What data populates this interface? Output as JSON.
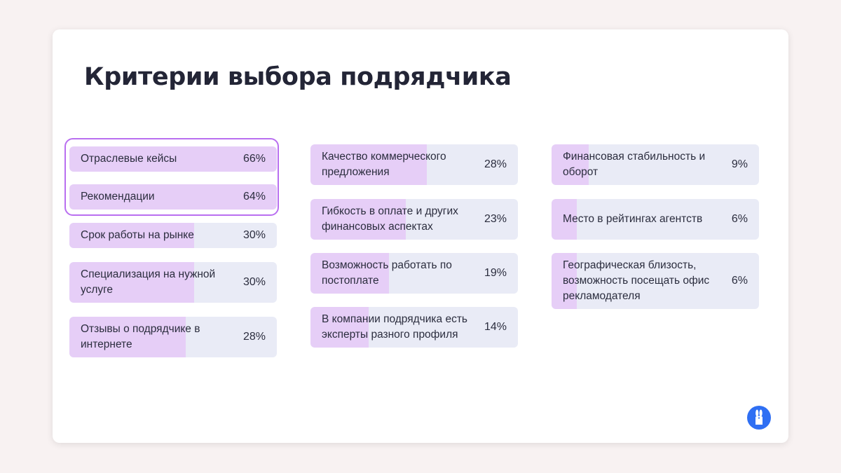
{
  "title": "Критерии выбора подрядчика",
  "colors": {
    "background": "#f8f2f2",
    "card": "#ffffff",
    "bar_track": "#e9ebf6",
    "bar_fill": "#e6cef7",
    "highlight_border": "#b96ff0",
    "logo": "#2f6ff3",
    "text": "#2b2d3e"
  },
  "logo_icon": "rabbit-logo-icon",
  "chart_data": {
    "type": "bar",
    "title": "Критерии выбора подрядчика",
    "orientation": "horizontal",
    "value_unit": "%",
    "xlim": [
      0,
      100
    ],
    "highlighted": [
      "Отраслевые кейсы",
      "Рекомендации"
    ],
    "columns": [
      [
        {
          "label": "Отраслевые кейсы",
          "value": 66,
          "display": "66%"
        },
        {
          "label": "Рекомендации",
          "value": 64,
          "display": "64%"
        },
        {
          "label": "Срок работы на рынке",
          "value": 30,
          "display": "30%"
        },
        {
          "label": "Специализация на нужной услуге",
          "value": 30,
          "display": "30%"
        },
        {
          "label": "Отзывы о подрядчике в интернете",
          "value": 28,
          "display": "28%"
        }
      ],
      [
        {
          "label": "Качество коммерческого предложения",
          "value": 28,
          "display": "28%"
        },
        {
          "label": "Гибкость в оплате и других финансовых аспектах",
          "value": 23,
          "display": "23%"
        },
        {
          "label": "Возможность работать по постоплате",
          "value": 19,
          "display": "19%"
        },
        {
          "label": "В компании подрядчика есть эксперты разного профиля",
          "value": 14,
          "display": "14%"
        }
      ],
      [
        {
          "label": "Финансовая стабильность и оборот",
          "value": 9,
          "display": "9%"
        },
        {
          "label": "Место в рейтингах агентств",
          "value": 6,
          "display": "6%"
        },
        {
          "label": "Географическая близость, возможность посещать офис рекламодателя",
          "value": 6,
          "display": "6%"
        }
      ]
    ]
  }
}
